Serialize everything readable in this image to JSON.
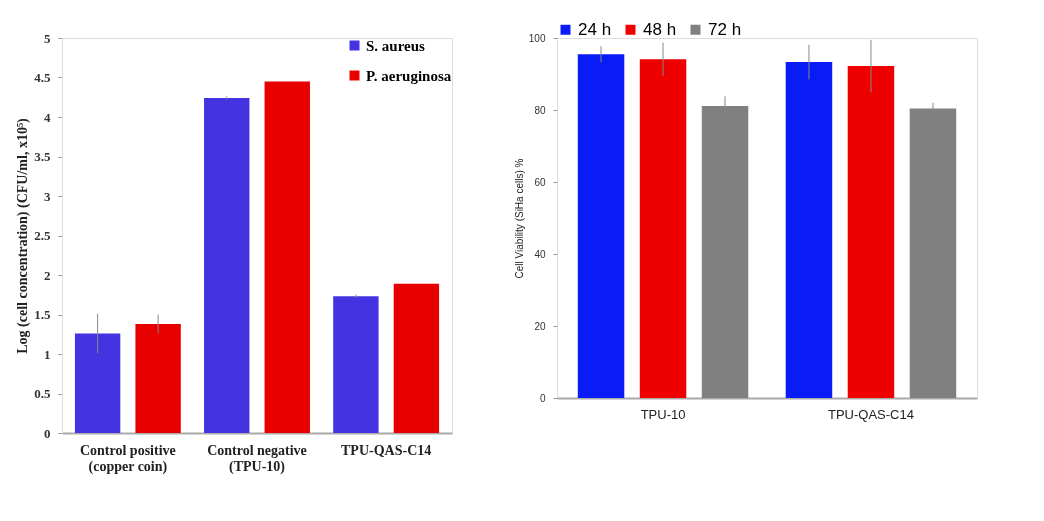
{
  "chart_data": [
    {
      "type": "bar",
      "ylabel": "Log (cell concentration) (CFU/ml, x10⁵)",
      "categories": [
        "Control positive\n(copper coin)",
        "Control negative\n(TPU-10)",
        "TPU-QAS-C14"
      ],
      "series": [
        {
          "name": "S. aureus",
          "color": "#4433e0",
          "values": [
            1.26,
            4.24,
            1.73
          ],
          "errors": [
            0.25,
            0.02,
            0.02
          ]
        },
        {
          "name": "P. aeruginosa",
          "color": "#e80000",
          "values": [
            1.38,
            4.45,
            1.89
          ],
          "errors": [
            0.12,
            null,
            null
          ]
        }
      ],
      "ylim": [
        0,
        5
      ],
      "yticks": [
        0,
        0.5,
        1,
        1.5,
        2,
        2.5,
        3,
        3.5,
        4,
        4.5,
        5
      ],
      "grid": false,
      "legend": "top right"
    },
    {
      "type": "bar",
      "ylabel": "Cell Viability  (SiHa cells) %",
      "categories": [
        "TPU-10",
        "TPU-QAS-C14"
      ],
      "series": [
        {
          "name": "24 h",
          "color": "#0a1cf5",
          "values": [
            95.5,
            93.3
          ],
          "errors": [
            2.2,
            4.8
          ]
        },
        {
          "name": "48 h",
          "color": "#ee0000",
          "values": [
            94.1,
            92.2
          ],
          "errors": [
            4.6,
            7.3
          ]
        },
        {
          "name": "72 h",
          "color": "#808080",
          "values": [
            81.1,
            80.4
          ],
          "errors": [
            2.7,
            1.6
          ]
        }
      ],
      "ylim": [
        0,
        100
      ],
      "yticks": [
        0,
        20,
        40,
        60,
        80,
        100
      ],
      "grid": false,
      "legend": "top"
    }
  ]
}
